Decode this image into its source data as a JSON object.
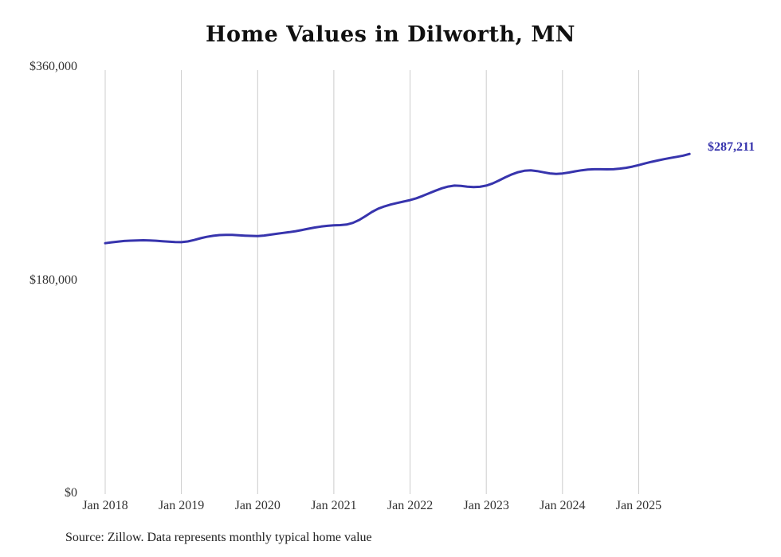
{
  "chart_data": {
    "type": "line",
    "title": "Home Values in Dilworth, MN",
    "xlabel": "",
    "ylabel": "",
    "ylim": [
      0,
      360000
    ],
    "grid": "vertical-only",
    "legend": "none",
    "x_frequency": "monthly",
    "x_start": "Jan 2018",
    "x_end": "Sep 2025",
    "x_tick_labels": [
      "Jan 2018",
      "Jan 2019",
      "Jan 2020",
      "Jan 2021",
      "Jan 2022",
      "Jan 2023",
      "Jan 2024",
      "Jan 2025"
    ],
    "y_ticks": [
      {
        "value": 0,
        "label": "$0"
      },
      {
        "value": 180000,
        "label": "$180,000"
      },
      {
        "value": 360000,
        "label": "$360,000"
      }
    ],
    "end_label": "$287,211",
    "latest_value": 287211,
    "series": [
      {
        "name": "Monthly typical home value",
        "color": "#3734ad",
        "values": [
          211800,
          212600,
          213200,
          213700,
          214000,
          214200,
          214300,
          214200,
          213900,
          213500,
          213100,
          212800,
          212700,
          213300,
          214500,
          216000,
          217200,
          218100,
          218700,
          218900,
          218800,
          218500,
          218200,
          218000,
          217900,
          218300,
          219000,
          219800,
          220500,
          221200,
          222000,
          223000,
          224100,
          225100,
          225900,
          226500,
          226900,
          227100,
          227600,
          229000,
          231500,
          234800,
          238200,
          241000,
          243000,
          244500,
          245800,
          247000,
          248200,
          249800,
          251800,
          254000,
          256200,
          258200,
          259700,
          260500,
          260300,
          259600,
          259200,
          259500,
          260500,
          262300,
          264800,
          267500,
          269900,
          271800,
          273000,
          273300,
          272700,
          271700,
          270800,
          270400,
          270700,
          271500,
          272500,
          273400,
          274000,
          274300,
          274300,
          274200,
          274300,
          274800,
          275500,
          276500,
          277800,
          279200,
          280500,
          281700,
          282800,
          283800,
          284800,
          285800,
          287211
        ]
      }
    ]
  },
  "source_note": "Source: Zillow. Data represents monthly typical home value",
  "colors": {
    "line": "#3734ad",
    "grid": "#cccccc",
    "title_text": "#111111",
    "axis_text": "#333333",
    "background": "#ffffff"
  }
}
